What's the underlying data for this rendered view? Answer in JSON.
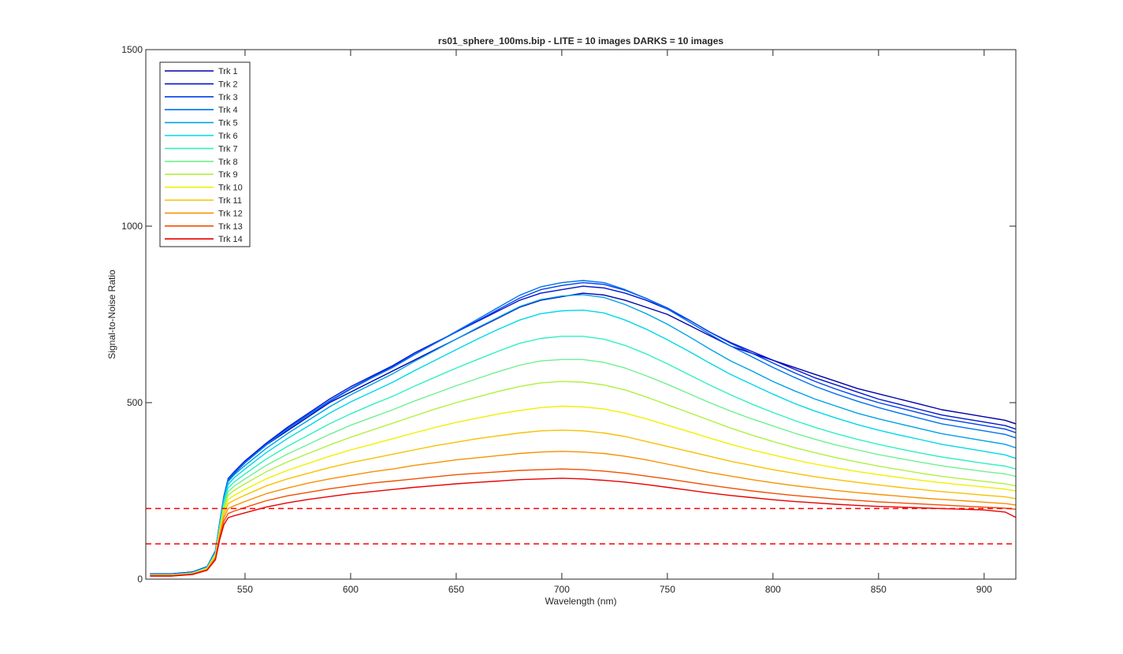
{
  "chart_data": {
    "type": "line",
    "title": "rs01_sphere_100ms.bip - LITE =  10 images  DARKS = 10 images",
    "xlabel": "Wavelength (nm)",
    "ylabel": "Signal-to-Noise Ratio",
    "xlim": [
      503,
      915
    ],
    "ylim": [
      0,
      1500
    ],
    "xticks": [
      550,
      600,
      650,
      700,
      750,
      800,
      850,
      900
    ],
    "yticks": [
      0,
      500,
      1000,
      1500
    ],
    "grid": false,
    "legend_position": "top-left",
    "x": [
      505,
      515,
      525,
      532,
      536,
      538,
      540,
      542,
      545,
      550,
      560,
      570,
      580,
      590,
      600,
      610,
      620,
      630,
      640,
      650,
      660,
      670,
      680,
      690,
      700,
      710,
      720,
      730,
      740,
      750,
      760,
      770,
      780,
      790,
      800,
      810,
      820,
      830,
      840,
      850,
      860,
      870,
      880,
      890,
      900,
      910,
      915
    ],
    "series": [
      {
        "name": "Trk 1",
        "color": "#0000a8",
        "values": [
          15,
          15,
          20,
          35,
          80,
          160,
          230,
          280,
          300,
          330,
          380,
          420,
          460,
          500,
          530,
          560,
          590,
          620,
          650,
          680,
          710,
          740,
          770,
          790,
          800,
          810,
          805,
          790,
          770,
          750,
          720,
          690,
          660,
          640,
          620,
          600,
          580,
          560,
          540,
          525,
          510,
          495,
          480,
          470,
          460,
          450,
          440
        ]
      },
      {
        "name": "Trk 2",
        "color": "#0014d0",
        "values": [
          15,
          15,
          20,
          35,
          80,
          160,
          235,
          285,
          305,
          335,
          385,
          430,
          470,
          510,
          545,
          575,
          605,
          640,
          670,
          700,
          730,
          760,
          790,
          810,
          820,
          830,
          825,
          810,
          790,
          765,
          735,
          700,
          670,
          645,
          620,
          595,
          570,
          550,
          530,
          510,
          495,
          480,
          465,
          455,
          445,
          435,
          425
        ]
      },
      {
        "name": "Trk 3",
        "color": "#0040ec",
        "values": [
          14,
          14,
          19,
          34,
          78,
          158,
          232,
          282,
          302,
          332,
          382,
          426,
          466,
          505,
          540,
          572,
          602,
          636,
          668,
          700,
          732,
          764,
          796,
          820,
          832,
          840,
          835,
          818,
          795,
          768,
          735,
          700,
          668,
          640,
          612,
          585,
          560,
          538,
          518,
          500,
          485,
          470,
          455,
          445,
          435,
          425,
          415
        ]
      },
      {
        "name": "Trk 4",
        "color": "#0070f0",
        "values": [
          14,
          14,
          19,
          34,
          78,
          158,
          232,
          282,
          302,
          330,
          380,
          424,
          464,
          503,
          538,
          570,
          600,
          635,
          668,
          702,
          736,
          770,
          804,
          828,
          840,
          846,
          840,
          820,
          795,
          765,
          730,
          694,
          660,
          630,
          600,
          572,
          546,
          524,
          504,
          486,
          470,
          455,
          440,
          430,
          420,
          410,
          400
        ]
      },
      {
        "name": "Trk 5",
        "color": "#00a0e8",
        "values": [
          13,
          13,
          18,
          33,
          76,
          155,
          228,
          276,
          296,
          322,
          370,
          412,
          450,
          488,
          522,
          552,
          582,
          616,
          648,
          680,
          712,
          742,
          772,
          792,
          802,
          806,
          798,
          778,
          752,
          722,
          688,
          652,
          618,
          590,
          560,
          534,
          510,
          490,
          470,
          454,
          440,
          426,
          412,
          402,
          392,
          382,
          372
        ]
      },
      {
        "name": "Trk 6",
        "color": "#00d8e8",
        "values": [
          13,
          13,
          18,
          33,
          75,
          152,
          222,
          268,
          288,
          312,
          358,
          398,
          434,
          470,
          502,
          530,
          558,
          590,
          620,
          650,
          680,
          708,
          734,
          752,
          760,
          762,
          754,
          734,
          708,
          678,
          646,
          612,
          580,
          552,
          524,
          498,
          476,
          456,
          438,
          422,
          408,
          395,
          382,
          372,
          362,
          352,
          342
        ]
      },
      {
        "name": "Trk 7",
        "color": "#30f0c0",
        "values": [
          12,
          12,
          17,
          32,
          73,
          148,
          215,
          258,
          276,
          298,
          340,
          376,
          408,
          440,
          468,
          494,
          518,
          546,
          572,
          598,
          622,
          646,
          668,
          682,
          688,
          688,
          680,
          662,
          638,
          610,
          580,
          550,
          522,
          496,
          472,
          450,
          430,
          412,
          396,
          382,
          369,
          357,
          346,
          337,
          328,
          320,
          312
        ]
      },
      {
        "name": "Trk 8",
        "color": "#70f090",
        "values": [
          12,
          12,
          17,
          31,
          71,
          144,
          208,
          248,
          264,
          284,
          322,
          354,
          382,
          410,
          436,
          458,
          480,
          504,
          526,
          548,
          568,
          588,
          606,
          618,
          622,
          622,
          614,
          598,
          576,
          552,
          526,
          500,
          476,
          454,
          434,
          414,
          396,
          380,
          366,
          353,
          342,
          331,
          321,
          313,
          305,
          298,
          291
        ]
      },
      {
        "name": "Trk 9",
        "color": "#b0f040",
        "values": [
          11,
          11,
          16,
          30,
          69,
          140,
          200,
          238,
          252,
          270,
          304,
          332,
          356,
          380,
          402,
          422,
          442,
          462,
          482,
          500,
          516,
          532,
          546,
          556,
          560,
          558,
          550,
          536,
          516,
          494,
          472,
          450,
          428,
          408,
          390,
          373,
          358,
          344,
          332,
          320,
          310,
          300,
          291,
          284,
          277,
          270,
          264
        ]
      },
      {
        "name": "Trk 10",
        "color": "#f0f000",
        "values": [
          11,
          11,
          16,
          29,
          67,
          135,
          192,
          226,
          238,
          254,
          284,
          308,
          328,
          348,
          366,
          382,
          398,
          414,
          430,
          444,
          456,
          468,
          478,
          486,
          490,
          488,
          482,
          470,
          454,
          436,
          418,
          400,
          382,
          366,
          352,
          338,
          326,
          315,
          305,
          296,
          288,
          280,
          273,
          267,
          261,
          255,
          250
        ]
      },
      {
        "name": "Trk 11",
        "color": "#f8c000",
        "values": [
          10,
          10,
          15,
          28,
          64,
          130,
          184,
          214,
          224,
          238,
          264,
          284,
          300,
          316,
          330,
          342,
          354,
          366,
          378,
          388,
          398,
          406,
          414,
          420,
          422,
          420,
          414,
          404,
          390,
          376,
          362,
          348,
          334,
          322,
          310,
          300,
          290,
          282,
          274,
          267,
          260,
          254,
          248,
          243,
          238,
          233,
          228
        ]
      },
      {
        "name": "Trk 12",
        "color": "#f89000",
        "values": [
          10,
          10,
          15,
          27,
          61,
          124,
          174,
          200,
          208,
          220,
          242,
          258,
          272,
          284,
          294,
          304,
          312,
          322,
          330,
          338,
          344,
          350,
          356,
          360,
          362,
          360,
          356,
          348,
          338,
          326,
          314,
          302,
          292,
          282,
          273,
          265,
          258,
          251,
          245,
          240,
          235,
          230,
          226,
          222,
          218,
          214,
          210
        ]
      },
      {
        "name": "Trk 13",
        "color": "#f05000",
        "values": [
          9,
          9,
          14,
          26,
          58,
          118,
          164,
          186,
          193,
          203,
          222,
          236,
          246,
          256,
          264,
          272,
          278,
          284,
          290,
          296,
          300,
          304,
          308,
          310,
          312,
          310,
          306,
          300,
          292,
          284,
          275,
          266,
          258,
          250,
          243,
          237,
          232,
          227,
          223,
          219,
          216,
          213,
          210,
          207,
          204,
          201,
          198
        ]
      },
      {
        "name": "Trk 14",
        "color": "#e80000",
        "values": [
          9,
          9,
          13,
          25,
          55,
          112,
          154,
          174,
          180,
          188,
          204,
          216,
          226,
          234,
          242,
          248,
          254,
          260,
          265,
          270,
          274,
          278,
          282,
          284,
          286,
          284,
          280,
          275,
          268,
          260,
          252,
          244,
          237,
          231,
          225,
          220,
          216,
          212,
          209,
          206,
          204,
          202,
          200,
          198,
          196,
          190,
          175
        ]
      }
    ],
    "reference_lines": [
      {
        "y": 200,
        "style": "dashed",
        "color": "#ff0000"
      },
      {
        "y": 100,
        "style": "dashed",
        "color": "#ff0000"
      }
    ]
  }
}
